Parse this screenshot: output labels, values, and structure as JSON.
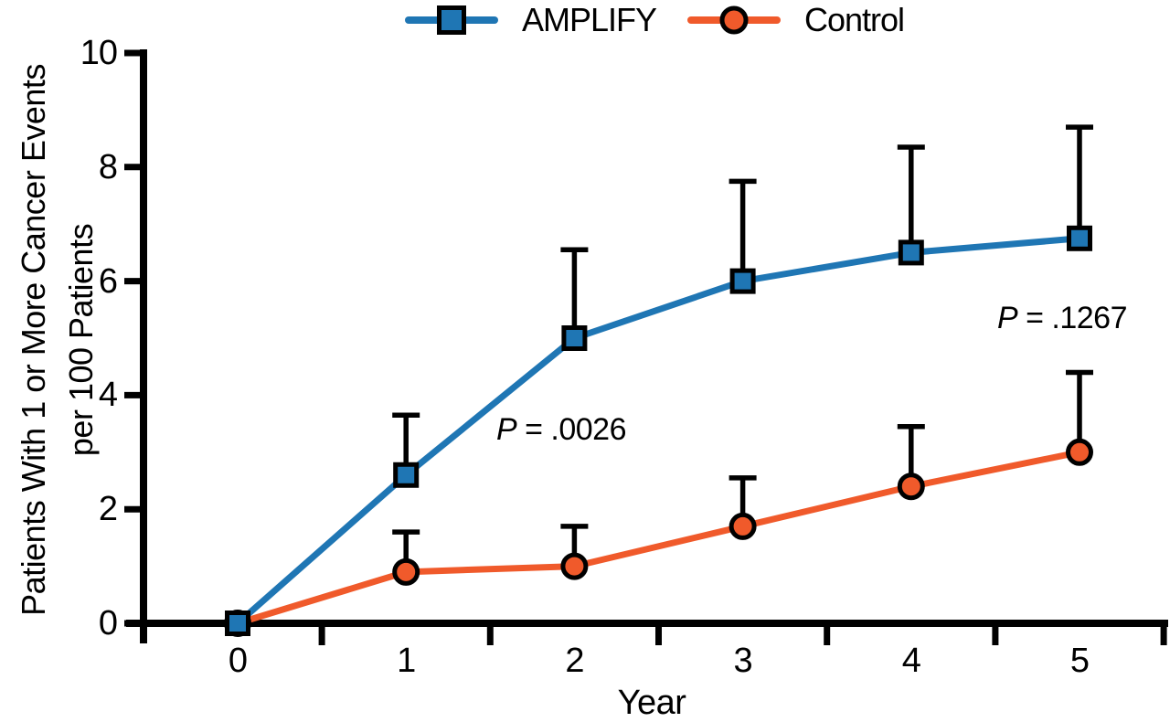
{
  "figure": {
    "background": "#ffffff",
    "axis_color": "#000000"
  },
  "y_axis": {
    "label_line1": "Patients With 1 or More Cancer Events",
    "label_line2": "per 100 Patients",
    "ticks": [
      0,
      2,
      4,
      6,
      8,
      10
    ]
  },
  "x_axis": {
    "label": "Year",
    "ticks": [
      0,
      1,
      2,
      3,
      4,
      5
    ],
    "minor_ticks": [
      0.5,
      1.5,
      2.5,
      3.5,
      4.5,
      5.5
    ]
  },
  "legend": {
    "position": "top-center",
    "items": [
      {
        "label": "AMPLIFY",
        "color": "#1f76b4",
        "marker": "square"
      },
      {
        "label": "Control",
        "color": "#f05a2b",
        "marker": "circle"
      }
    ]
  },
  "annotations": {
    "p1": {
      "p": "P",
      "rest": " = .0026"
    },
    "p2": {
      "p": "P",
      "rest": " = .1267"
    }
  },
  "chart_data": {
    "type": "line",
    "title": "",
    "xlabel": "Year",
    "ylabel": "Patients With 1 or More Cancer Events per 100 Patients",
    "x": [
      0,
      1,
      2,
      3,
      4,
      5
    ],
    "xlim": [
      -0.66,
      5.55
    ],
    "ylim": [
      0,
      10
    ],
    "yticks": [
      0,
      2,
      4,
      6,
      8,
      10
    ],
    "grid": false,
    "legend_position": "top",
    "error_bars": "upper-only",
    "series": [
      {
        "name": "AMPLIFY",
        "color": "#1f76b4",
        "marker": "square",
        "values": [
          0,
          2.6,
          5.0,
          6.0,
          6.5,
          6.75
        ],
        "upper_ci": [
          null,
          3.65,
          6.55,
          7.75,
          8.35,
          8.7
        ]
      },
      {
        "name": "Control",
        "color": "#f05a2b",
        "marker": "circle",
        "values": [
          0,
          0.9,
          1.0,
          1.7,
          2.4,
          3.0
        ],
        "upper_ci": [
          null,
          1.6,
          1.7,
          2.55,
          3.45,
          4.4
        ]
      }
    ],
    "annotations": [
      {
        "text": "P = .0026",
        "x": 1.92,
        "y": 3.3
      },
      {
        "text": "P = .1267",
        "x": 4.9,
        "y": 5.25
      }
    ]
  }
}
